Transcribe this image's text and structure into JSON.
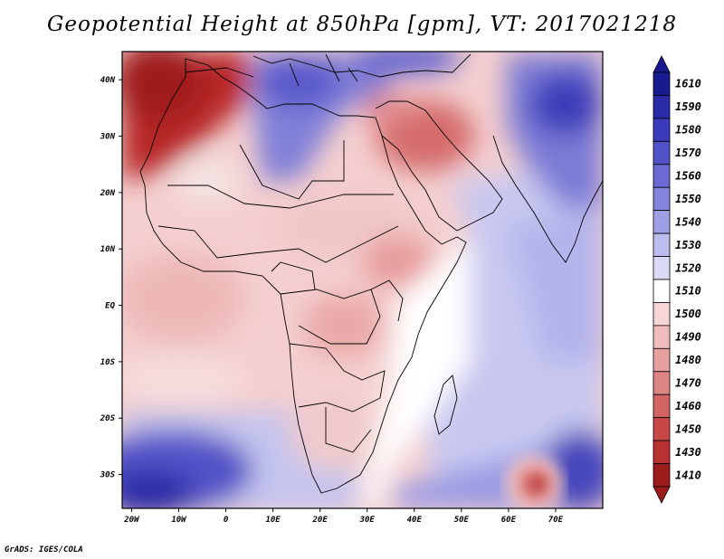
{
  "title": "Geopotential Height at 850hPa [gpm], VT: 2017021218",
  "footer": "GrADS: IGES/COLA",
  "map": {
    "lon_labels": [
      "20W",
      "10W",
      "0",
      "10E",
      "20E",
      "30E",
      "40E",
      "50E",
      "60E",
      "70E"
    ],
    "lat_labels": [
      "40N",
      "30N",
      "20N",
      "10N",
      "EQ",
      "10S",
      "20S",
      "30S"
    ],
    "colorbar": {
      "labels": [
        "1610",
        "1590",
        "1580",
        "1570",
        "1560",
        "1550",
        "1540",
        "1530",
        "1520",
        "1510",
        "1500",
        "1490",
        "1480",
        "1470",
        "1460",
        "1450",
        "1430",
        "1410"
      ],
      "colors": [
        "#1a1a8f",
        "#2a2aa6",
        "#3c3cba",
        "#5252c8",
        "#6a6ad2",
        "#8484dc",
        "#9e9ee5",
        "#bcbcee",
        "#dadaf6",
        "#ffffff",
        "#f6d6d6",
        "#efbcbc",
        "#e6a0a0",
        "#dd8484",
        "#d26464",
        "#c84848",
        "#b83030",
        "#9c1c1c"
      ]
    }
  }
}
